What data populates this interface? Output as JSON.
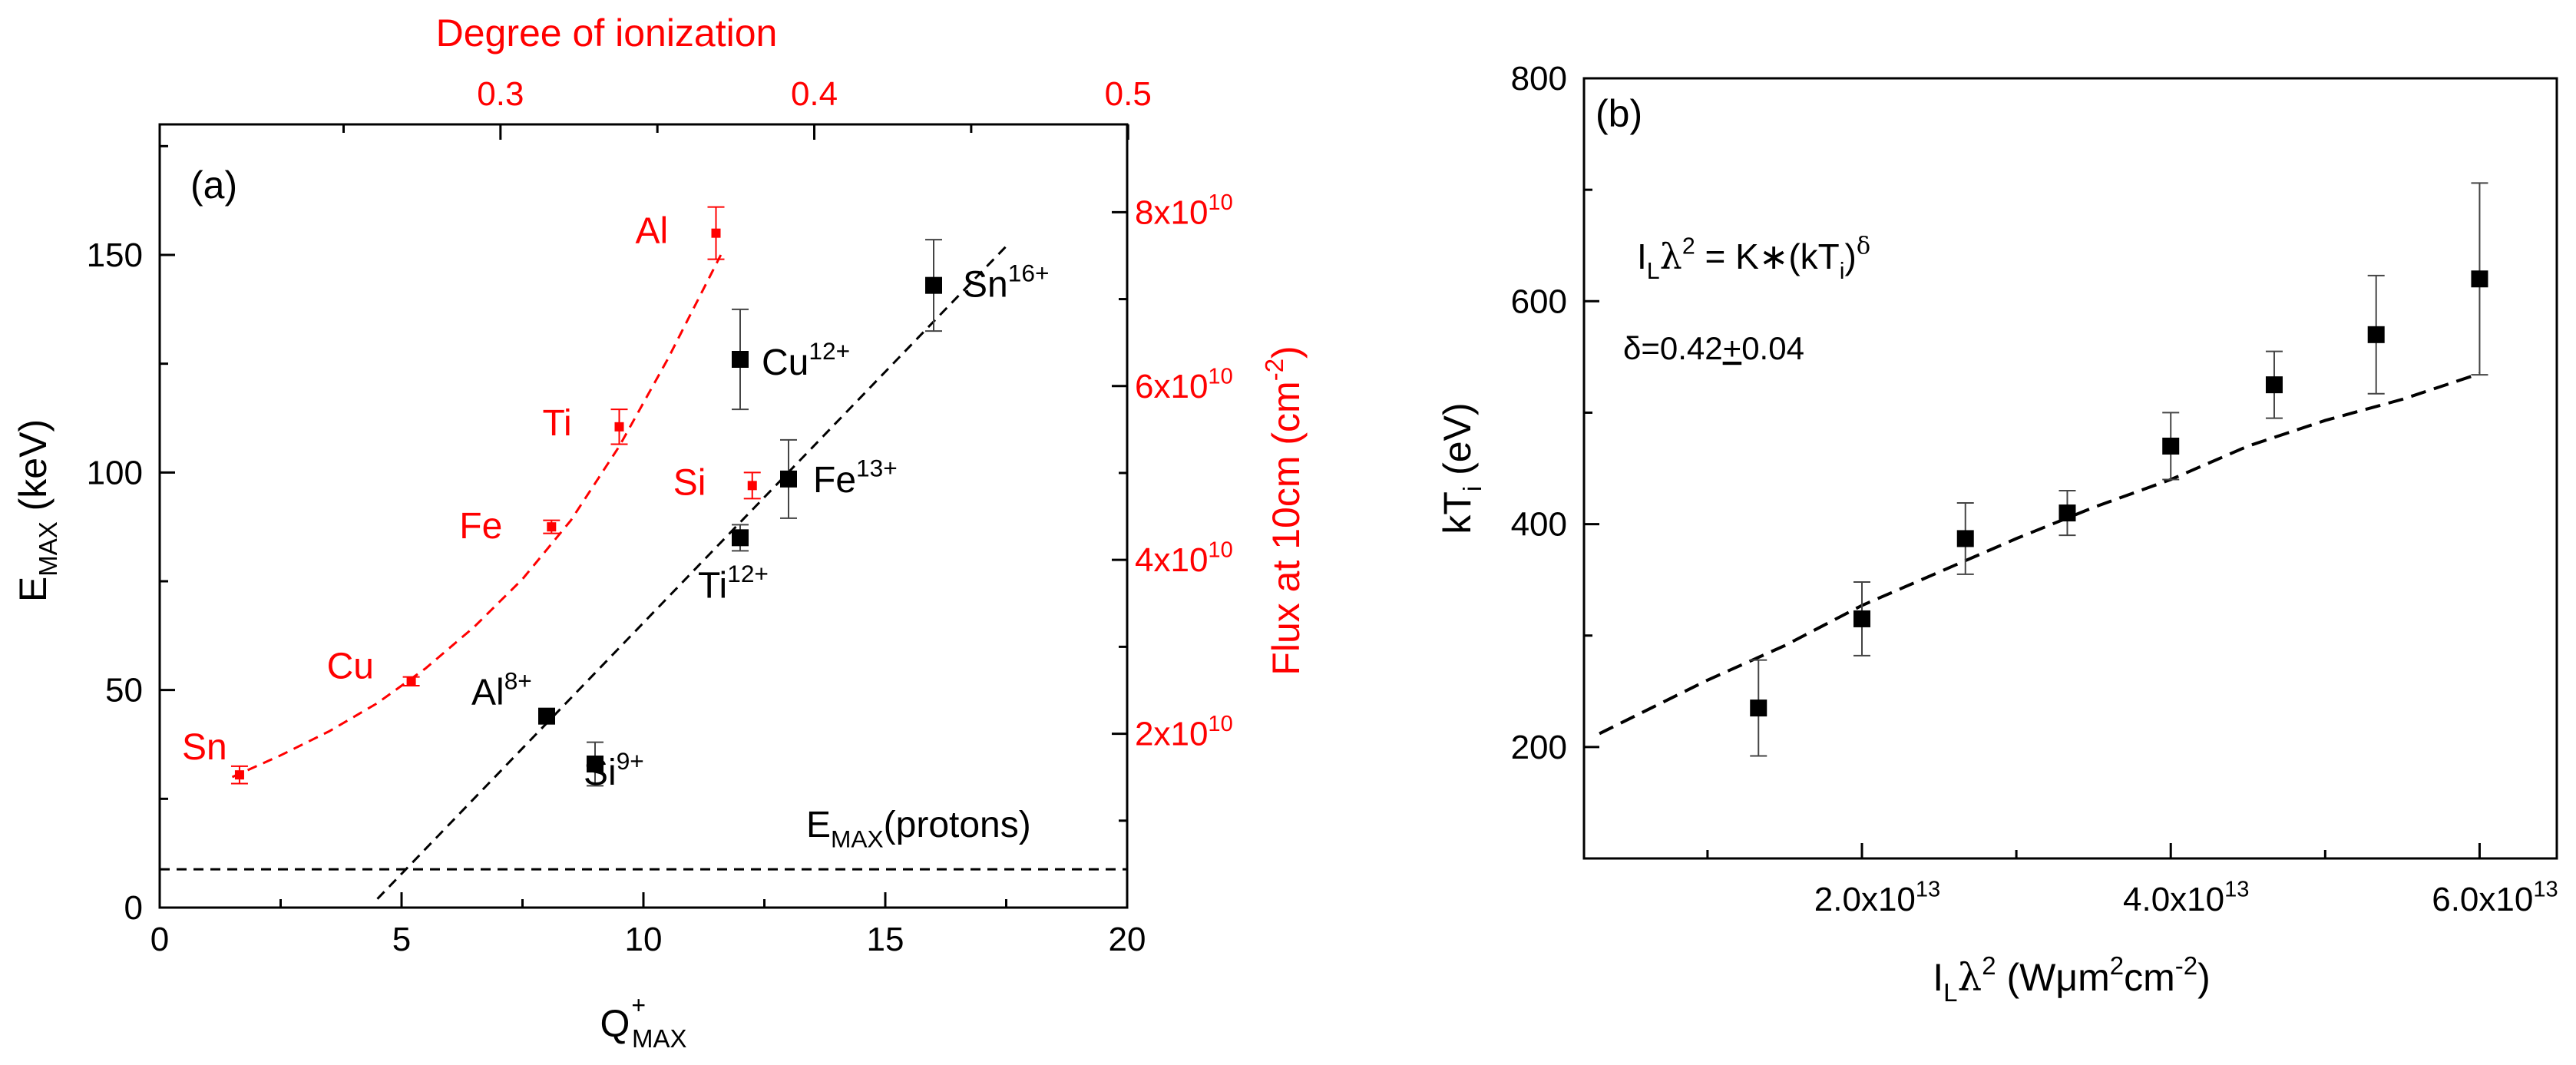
{
  "chart_data": [
    {
      "panel_label": "(a)",
      "type": "scatter",
      "xlabel": "Q",
      "xlabel_sup": "+",
      "xlabel_sub": "MAX",
      "ylabel": "E",
      "ylabel_sub": "MAX",
      "ylabel_unit": " (keV)",
      "xlim": [
        0,
        20
      ],
      "ylim": [
        0,
        180
      ],
      "xticks": [
        0,
        5,
        10,
        15,
        20
      ],
      "yticks": [
        0,
        50,
        100,
        150
      ],
      "top_axis": {
        "label": "Degree of ionization",
        "ticks": [
          "0.3",
          "0.4",
          "0.5"
        ],
        "tick_values": [
          0.3,
          0.4,
          0.5
        ],
        "range": [
          0.1914,
          0.4997
        ],
        "color": "#ff0000"
      },
      "right_axis": {
        "label": "Flux at 10cm (cm",
        "label_sup": "-2",
        "label_end": ")",
        "ticks": [
          {
            "base": "2x10",
            "exp": "10",
            "value": 20000000000.0
          },
          {
            "base": "4x10",
            "exp": "10",
            "value": 40000000000.0
          },
          {
            "base": "6x10",
            "exp": "10",
            "value": 60000000000.0
          },
          {
            "base": "8x10",
            "exp": "10",
            "value": 80000000000.0
          }
        ],
        "range": [
          0,
          90100000000.0
        ],
        "color": "#ff0000"
      },
      "series": [
        {
          "color": "#000000",
          "points": [
            {
              "x": 8,
              "y": 44,
              "yerr": 0,
              "label": "Al",
              "sup": "8+"
            },
            {
              "x": 9,
              "y": 33,
              "yerr": 5,
              "label": "Si",
              "sup": "9+"
            },
            {
              "x": 12,
              "y": 85,
              "yerr": 3,
              "label": "Ti",
              "sup": "12+"
            },
            {
              "x": 12,
              "y": 126,
              "yerr": 11.5,
              "label": "Cu",
              "sup": "12+"
            },
            {
              "x": 13,
              "y": 98.5,
              "yerr": 9,
              "label": "Fe",
              "sup": "13+"
            },
            {
              "x": 16,
              "y": 143,
              "yerr": 10.5,
              "label": "Sn",
              "sup": "16+"
            }
          ],
          "fit": {
            "x": [
              4.5,
              17.5
            ],
            "y": [
              2,
              152
            ]
          }
        },
        {
          "color": "#ff0000",
          "points": [
            {
              "x": 1.65,
              "y": 30.5,
              "yerr": 2,
              "label": "Sn"
            },
            {
              "x": 5.2,
              "y": 52,
              "yerr": 1,
              "label": "Cu"
            },
            {
              "x": 8.1,
              "y": 87.5,
              "yerr": 1.5,
              "label": "Fe"
            },
            {
              "x": 9.5,
              "y": 110.5,
              "yerr": 4,
              "label": "Ti"
            },
            {
              "x": 12.25,
              "y": 97,
              "yerr": 3,
              "label": "Si"
            },
            {
              "x": 11.5,
              "y": 155,
              "yerr": 6,
              "label": "Al"
            }
          ],
          "fit": {
            "x": [
              1.5,
              2.5,
              3.5,
              4.5,
              5.5,
              6.5,
              7.5,
              8.5,
              9.5,
              10.5,
              11.6
            ],
            "y": [
              30,
              35,
              40.5,
              47,
              55,
              64.5,
              75.5,
              89,
              106,
              126,
              150
            ]
          }
        }
      ],
      "reference_line": {
        "y": 8.8,
        "label": "E",
        "label_sub": "MAX",
        "label_end": "(protons)"
      }
    },
    {
      "panel_label": "(b)",
      "type": "scatter",
      "xlabel": "I",
      "xlabel_sub": "L",
      "xlabel_lambda": "λ",
      "xlabel_sup": "2",
      "xlabel_unit": " (Wμm",
      "xlabel_unit_sup": "2",
      "xlabel_unit_mid": "cm",
      "xlabel_unit_sup2": "-2",
      "xlabel_end": ")",
      "ylabel": "kT",
      "ylabel_sub": "i",
      "ylabel_unit": " (eV)",
      "xlim": [
        2000000000000.0,
        65000000000000.0
      ],
      "ylim": [
        100,
        800
      ],
      "xticks": [
        {
          "base": "2.0x10",
          "exp": "13",
          "value": 20000000000000.0
        },
        {
          "base": "4.0x10",
          "exp": "13",
          "value": 40000000000000.0
        },
        {
          "base": "6.0x10",
          "exp": "13",
          "value": 60000000000000.0
        }
      ],
      "xminor": [
        10000000000000.0,
        30000000000000.0,
        50000000000000.0
      ],
      "yticks": [
        200,
        400,
        600,
        800
      ],
      "points": [
        {
          "x": 13300000000000.0,
          "y": 235,
          "yerr": 43
        },
        {
          "x": 20000000000000.0,
          "y": 315,
          "yerr": 33
        },
        {
          "x": 26700000000000.0,
          "y": 387,
          "yerr": 32
        },
        {
          "x": 33300000000000.0,
          "y": 410,
          "yerr": 20
        },
        {
          "x": 40000000000000.0,
          "y": 470,
          "yerr": 30
        },
        {
          "x": 46700000000000.0,
          "y": 525,
          "yerr": 30
        },
        {
          "x": 53300000000000.0,
          "y": 570,
          "yerr": 53
        },
        {
          "x": 60000000000000.0,
          "y": 620,
          "yerr": 86
        }
      ],
      "fit": {
        "x": [
          3000000000000.0,
          10000000000000.0,
          15000000000000.0,
          20000000000000.0,
          25000000000000.0,
          30000000000000.0,
          35000000000000.0,
          40000000000000.0,
          45000000000000.0,
          50000000000000.0,
          55000000000000.0,
          60000000000000.0
        ],
        "y": [
          212,
          260,
          291,
          327,
          357,
          387,
          415,
          440,
          470,
          493,
          512,
          535
        ]
      },
      "equation": {
        "i": "I",
        "i_sub": "L",
        "lambda": "λ",
        "sup2": "2",
        "rhs": " = K∗(kT",
        "rhs_sub": "i",
        "rhs_end": ")",
        "delta": "δ"
      },
      "delta_text": "δ=0.42",
      "delta_pm": "+",
      "delta_err": "0.04"
    }
  ]
}
